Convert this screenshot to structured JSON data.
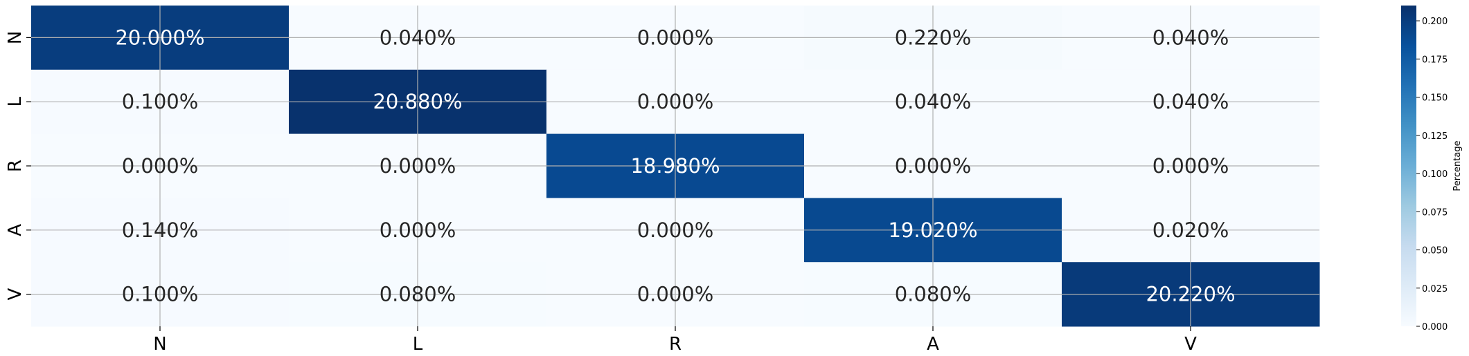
{
  "chart_data": {
    "type": "heatmap",
    "title": "",
    "xlabel": "",
    "ylabel": "",
    "x_categories": [
      "N",
      "L",
      "R",
      "A",
      "V"
    ],
    "y_categories": [
      "N",
      "L",
      "R",
      "A",
      "V"
    ],
    "values": [
      [
        0.2,
        0.0004,
        0.0,
        0.0022,
        0.0004
      ],
      [
        0.001,
        0.2088,
        0.0,
        0.0004,
        0.0004
      ],
      [
        0.0,
        0.0,
        0.1898,
        0.0,
        0.0
      ],
      [
        0.0014,
        0.0,
        0.0,
        0.1902,
        0.0002
      ],
      [
        0.001,
        0.0008,
        0.0,
        0.0008,
        0.2022
      ]
    ],
    "annotations": [
      [
        "20.000%",
        "0.040%",
        "0.000%",
        "0.220%",
        "0.040%"
      ],
      [
        "0.100%",
        "20.880%",
        "0.000%",
        "0.040%",
        "0.040%"
      ],
      [
        "0.000%",
        "0.000%",
        "18.980%",
        "0.000%",
        "0.000%"
      ],
      [
        "0.140%",
        "0.000%",
        "0.000%",
        "19.020%",
        "0.020%"
      ],
      [
        "0.100%",
        "0.080%",
        "0.000%",
        "0.080%",
        "20.220%"
      ]
    ],
    "colormap": "Blues",
    "colorbar": {
      "label": "Percentage",
      "range": [
        0,
        0.21
      ],
      "ticks": [
        "0.000",
        "0.025",
        "0.050",
        "0.075",
        "0.100",
        "0.125",
        "0.150",
        "0.175",
        "0.200"
      ]
    },
    "grid": true
  }
}
